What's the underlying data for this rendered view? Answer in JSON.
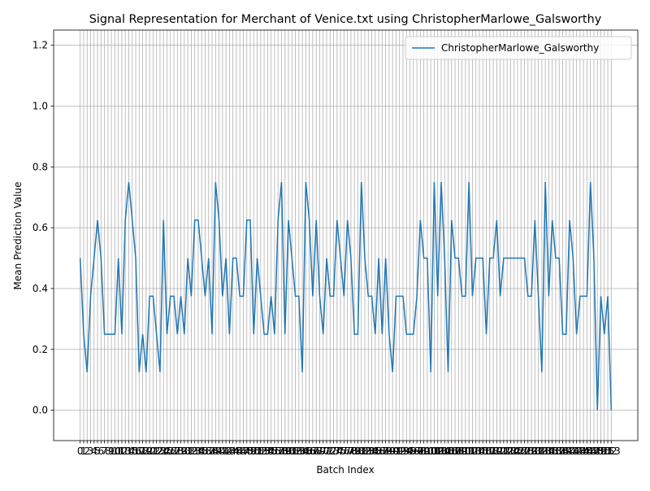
{
  "chart_data": {
    "type": "line",
    "title": "Signal Representation for Merchant of Venice.txt using ChristopherMarlowe_Galsworthy",
    "x_label": "Batch Index",
    "y_label": "Mean Prediction Value",
    "x": [
      0,
      1,
      2,
      3,
      4,
      5,
      6,
      7,
      8,
      9,
      10,
      11,
      12,
      13,
      14,
      15,
      16,
      17,
      18,
      19,
      20,
      21,
      22,
      23,
      24,
      25,
      26,
      27,
      28,
      29,
      30,
      31,
      32,
      33,
      34,
      35,
      36,
      37,
      38,
      39,
      40,
      41,
      42,
      43,
      44,
      45,
      46,
      47,
      48,
      49,
      50,
      51,
      52,
      53,
      54,
      55,
      56,
      57,
      58,
      59,
      60,
      61,
      62,
      63,
      64,
      65,
      66,
      67,
      68,
      69,
      70,
      71,
      72,
      73,
      74,
      75,
      76,
      77,
      78,
      79,
      80,
      81,
      82,
      83,
      84,
      85,
      86,
      87,
      88,
      89,
      90,
      91,
      92,
      93,
      94,
      95,
      96,
      97,
      98,
      99,
      100,
      101,
      102,
      103,
      104,
      105,
      106,
      107,
      108,
      109,
      110,
      111,
      112,
      113,
      114,
      115,
      116,
      117,
      118,
      119,
      120,
      121,
      122,
      123,
      124,
      125,
      126,
      127,
      128,
      129,
      130,
      131,
      132,
      133,
      134,
      135,
      136,
      137,
      138,
      139,
      140,
      141,
      142,
      143,
      144,
      145,
      146,
      147,
      148,
      149,
      150,
      151,
      152,
      153
    ],
    "series": [
      {
        "name": "ChristopherMarlowe_Galsworthy",
        "color": "#1f77b4",
        "values": [
          0.5,
          0.25,
          0.125,
          0.375,
          0.5,
          0.625,
          0.5,
          0.25,
          0.25,
          0.25,
          0.25,
          0.5,
          0.25,
          0.625,
          0.75,
          0.625,
          0.5,
          0.125,
          0.25,
          0.125,
          0.375,
          0.375,
          0.25,
          0.125,
          0.625,
          0.25,
          0.375,
          0.375,
          0.25,
          0.375,
          0.25,
          0.5,
          0.375,
          0.625,
          0.625,
          0.5,
          0.375,
          0.5,
          0.25,
          0.75,
          0.625,
          0.375,
          0.5,
          0.25,
          0.5,
          0.5,
          0.375,
          0.375,
          0.625,
          0.625,
          0.25,
          0.5,
          0.375,
          0.25,
          0.25,
          0.375,
          0.25,
          0.625,
          0.75,
          0.25,
          0.625,
          0.5,
          0.375,
          0.375,
          0.125,
          0.75,
          0.625,
          0.375,
          0.625,
          0.375,
          0.25,
          0.5,
          0.375,
          0.375,
          0.625,
          0.5,
          0.375,
          0.625,
          0.5,
          0.25,
          0.25,
          0.75,
          0.5,
          0.375,
          0.375,
          0.25,
          0.5,
          0.25,
          0.5,
          0.25,
          0.125,
          0.375,
          0.375,
          0.375,
          0.25,
          0.25,
          0.25,
          0.375,
          0.625,
          0.5,
          0.5,
          0.125,
          0.75,
          0.375,
          0.75,
          0.5,
          0.125,
          0.625,
          0.5,
          0.5,
          0.375,
          0.375,
          0.75,
          0.375,
          0.5,
          0.5,
          0.5,
          0.25,
          0.5,
          0.5,
          0.625,
          0.375,
          0.5,
          0.5,
          0.5,
          0.5,
          0.5,
          0.5,
          0.5,
          0.375,
          0.375,
          0.625,
          0.375,
          0.125,
          0.75,
          0.375,
          0.625,
          0.5,
          0.5,
          0.25,
          0.25,
          0.625,
          0.5,
          0.25,
          0.375,
          0.375,
          0.375,
          0.75,
          0.5,
          0,
          0.375,
          0.25,
          0.375,
          0
        ]
      }
    ],
    "xlim": [
      -7.65,
      160.65
    ],
    "ylim": [
      -0.1,
      1.25
    ],
    "xticks": [
      0,
      1,
      2,
      3,
      4,
      5,
      6,
      7,
      8,
      9,
      10,
      11,
      12,
      13,
      14,
      15,
      16,
      17,
      18,
      19,
      20,
      21,
      22,
      23,
      24,
      25,
      26,
      27,
      28,
      29,
      30,
      31,
      32,
      33,
      34,
      35,
      36,
      37,
      38,
      39,
      40,
      41,
      42,
      43,
      44,
      45,
      46,
      47,
      48,
      49,
      50,
      51,
      52,
      53,
      54,
      55,
      56,
      57,
      58,
      59,
      60,
      61,
      62,
      63,
      64,
      65,
      66,
      67,
      68,
      69,
      70,
      71,
      72,
      73,
      74,
      75,
      76,
      77,
      78,
      79,
      80,
      81,
      82,
      83,
      84,
      85,
      86,
      87,
      88,
      89,
      90,
      91,
      92,
      93,
      94,
      95,
      96,
      97,
      98,
      99,
      100,
      101,
      102,
      103,
      104,
      105,
      106,
      107,
      108,
      109,
      110,
      111,
      112,
      113,
      114,
      115,
      116,
      117,
      118,
      119,
      120,
      121,
      122,
      123,
      124,
      125,
      126,
      127,
      128,
      129,
      130,
      131,
      132,
      133,
      134,
      135,
      136,
      137,
      138,
      139,
      140,
      141,
      142,
      143,
      144,
      145,
      146,
      147,
      148,
      149,
      150,
      151,
      152,
      153
    ],
    "yticks": [
      {
        "value": 0,
        "label": "0.0"
      },
      0.2,
      0.4,
      0.6,
      0.8,
      {
        "value": 1,
        "label": "1.0"
      },
      1.2
    ],
    "grid": true,
    "legend": "upper right"
  }
}
